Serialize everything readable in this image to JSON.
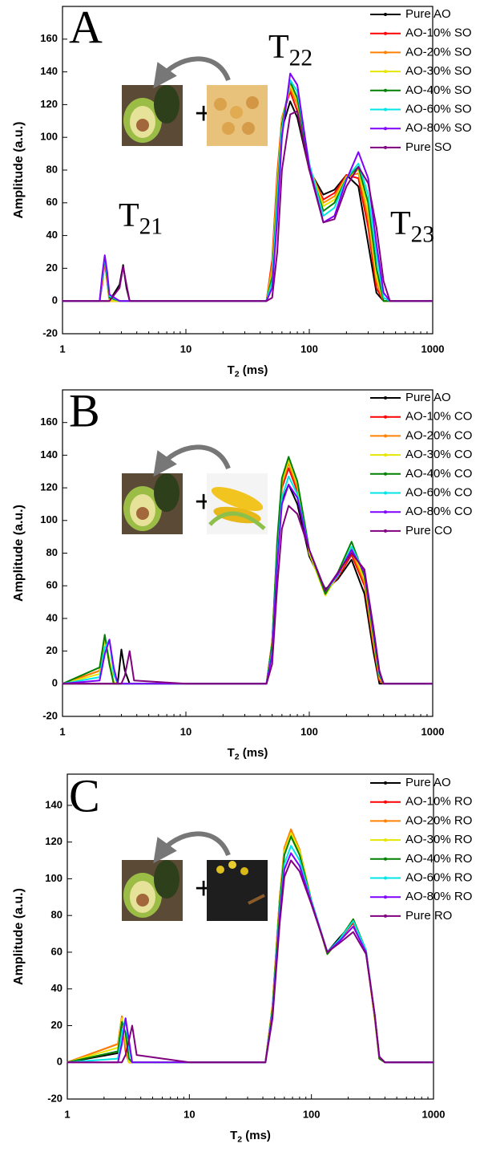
{
  "chart_data": [
    {
      "type": "line",
      "panel_label": "A",
      "log_x": true,
      "peak_labels": [
        {
          "text": "T",
          "sub": "22"
        },
        {
          "text": "T",
          "sub": "21"
        },
        {
          "text": "T",
          "sub": "23"
        }
      ],
      "x_label": {
        "text": "T",
        "sub": "2",
        "after": " (ms)"
      },
      "y_label": "Amplitude (a.u.)",
      "xlim": [
        1,
        1000
      ],
      "xticks": [
        1,
        10,
        100,
        1000
      ],
      "ylim": [
        -20,
        180
      ],
      "yticks": [
        -20,
        0,
        20,
        40,
        60,
        80,
        100,
        120,
        140,
        160
      ],
      "x": [
        1,
        2,
        2.1,
        2.2,
        2.3,
        2.4,
        2.9,
        3.1,
        3.3,
        3.5,
        10,
        45,
        50,
        55,
        60,
        70,
        80,
        100,
        130,
        160,
        200,
        250,
        300,
        350,
        400,
        450,
        1000
      ],
      "series": [
        {
          "name": "Pure AO",
          "color": "#000000",
          "values": [
            0,
            0,
            0,
            0,
            0,
            0,
            10,
            22,
            8,
            0,
            0,
            0,
            20,
            70,
            105,
            122,
            112,
            80,
            65,
            68,
            77,
            70,
            35,
            5,
            0,
            0,
            0
          ]
        },
        {
          "name": "AO-10% SO",
          "color": "#ff0000",
          "values": [
            0,
            0,
            10,
            24,
            12,
            0,
            0,
            0,
            0,
            0,
            0,
            0,
            25,
            78,
            112,
            128,
            116,
            80,
            62,
            66,
            77,
            75,
            45,
            8,
            0,
            0,
            0
          ]
        },
        {
          "name": "AO-20% SO",
          "color": "#ff8000",
          "values": [
            0,
            0,
            12,
            25,
            12,
            0,
            0,
            0,
            0,
            0,
            0,
            0,
            22,
            75,
            112,
            130,
            120,
            82,
            60,
            64,
            76,
            78,
            50,
            12,
            0,
            0,
            0
          ]
        },
        {
          "name": "AO-30% SO",
          "color": "#e6e600",
          "values": [
            0,
            0,
            12,
            26,
            14,
            0,
            0,
            0,
            0,
            0,
            0,
            0,
            18,
            70,
            110,
            132,
            122,
            82,
            58,
            62,
            76,
            80,
            55,
            15,
            0,
            0,
            0
          ]
        },
        {
          "name": "AO-40% SO",
          "color": "#008000",
          "values": [
            0,
            0,
            14,
            26,
            14,
            2,
            0,
            0,
            0,
            0,
            0,
            0,
            15,
            65,
            108,
            134,
            124,
            82,
            55,
            60,
            75,
            82,
            60,
            20,
            0,
            0,
            0
          ]
        },
        {
          "name": "AO-60% SO",
          "color": "#00e5e5",
          "values": [
            0,
            0,
            14,
            27,
            16,
            3,
            0,
            0,
            0,
            0,
            0,
            0,
            12,
            60,
            105,
            135,
            128,
            84,
            52,
            57,
            75,
            84,
            65,
            28,
            2,
            0,
            0
          ]
        },
        {
          "name": "AO-80% SO",
          "color": "#8000ff",
          "values": [
            0,
            0,
            16,
            28,
            18,
            4,
            0,
            0,
            0,
            0,
            0,
            0,
            8,
            50,
            100,
            139,
            132,
            82,
            48,
            52,
            74,
            91,
            75,
            35,
            5,
            0,
            0
          ]
        },
        {
          "name": "Pure SO",
          "color": "#800080",
          "values": [
            0,
            0,
            0,
            0,
            0,
            0,
            8,
            21,
            10,
            0,
            0,
            0,
            2,
            30,
            80,
            114,
            116,
            80,
            48,
            50,
            70,
            82,
            72,
            45,
            12,
            0,
            0
          ]
        }
      ]
    },
    {
      "type": "line",
      "panel_label": "B",
      "log_x": true,
      "x_label": {
        "text": "T",
        "sub": "2",
        "after": " (ms)"
      },
      "y_label": "Amplitude (a.u.)",
      "xlim": [
        1,
        1000
      ],
      "xticks": [
        1,
        10,
        100,
        1000
      ],
      "ylim": [
        -20,
        180
      ],
      "yticks": [
        -20,
        0,
        20,
        40,
        60,
        80,
        100,
        120,
        140,
        160
      ],
      "x": [
        1,
        2,
        2.2,
        2.4,
        2.6,
        2.8,
        3.0,
        3.2,
        3.5,
        3.8,
        10,
        45,
        50,
        55,
        60,
        68,
        80,
        100,
        135,
        170,
        220,
        280,
        330,
        370,
        400,
        1000
      ],
      "series": [
        {
          "name": "Pure AO",
          "color": "#000000",
          "values": [
            0,
            0,
            0,
            0,
            0,
            0,
            21,
            8,
            0,
            0,
            0,
            0,
            25,
            80,
            112,
            122,
            110,
            78,
            58,
            64,
            76,
            55,
            20,
            0,
            0,
            0
          ]
        },
        {
          "name": "AO-10% CO",
          "color": "#ff0000",
          "values": [
            0,
            8,
            29,
            12,
            0,
            0,
            0,
            0,
            0,
            0,
            0,
            0,
            26,
            85,
            120,
            132,
            118,
            80,
            56,
            65,
            79,
            60,
            24,
            2,
            0,
            0
          ]
        },
        {
          "name": "AO-20% CO",
          "color": "#ff8000",
          "values": [
            0,
            8,
            28,
            14,
            0,
            0,
            0,
            0,
            0,
            0,
            0,
            0,
            25,
            86,
            122,
            135,
            120,
            80,
            55,
            66,
            81,
            62,
            26,
            3,
            0,
            0
          ]
        },
        {
          "name": "AO-30% CO",
          "color": "#e6e600",
          "values": [
            0,
            6,
            27,
            15,
            1,
            0,
            0,
            0,
            0,
            0,
            0,
            0,
            24,
            87,
            124,
            137,
            122,
            80,
            54,
            67,
            83,
            64,
            28,
            4,
            0,
            0
          ]
        },
        {
          "name": "AO-40% CO",
          "color": "#008000",
          "values": [
            0,
            10,
            30,
            12,
            0,
            0,
            0,
            0,
            0,
            0,
            0,
            0,
            24,
            88,
            126,
            139,
            124,
            82,
            55,
            68,
            87,
            66,
            30,
            5,
            0,
            0
          ]
        },
        {
          "name": "AO-60% CO",
          "color": "#00e5e5",
          "values": [
            0,
            4,
            22,
            27,
            6,
            0,
            0,
            0,
            0,
            0,
            0,
            0,
            20,
            78,
            114,
            127,
            116,
            82,
            57,
            66,
            84,
            68,
            32,
            6,
            0,
            0
          ]
        },
        {
          "name": "AO-80% CO",
          "color": "#8000ff",
          "values": [
            0,
            2,
            18,
            27,
            10,
            0,
            0,
            0,
            0,
            0,
            0,
            0,
            18,
            74,
            110,
            122,
            114,
            82,
            57,
            67,
            82,
            68,
            33,
            7,
            0,
            0
          ]
        },
        {
          "name": "Pure CO",
          "color": "#800080",
          "values": [
            0,
            0,
            0,
            0,
            0,
            0,
            0,
            5,
            20,
            2,
            0,
            0,
            12,
            60,
            95,
            109,
            104,
            82,
            57,
            68,
            80,
            70,
            35,
            8,
            0,
            0
          ]
        }
      ]
    },
    {
      "type": "line",
      "panel_label": "C",
      "log_x": true,
      "x_label": {
        "text": "T",
        "sub": "2",
        "after": " (ms)"
      },
      "y_label": "Amplitude (a.u.)",
      "xlim": [
        1,
        1000
      ],
      "xticks": [
        1,
        10,
        100,
        1000
      ],
      "ylim": [
        -20,
        157
      ],
      "yticks": [
        -20,
        0,
        20,
        40,
        60,
        80,
        100,
        120,
        140
      ],
      "x": [
        1,
        2.6,
        2.8,
        3.0,
        3.2,
        3.4,
        3.7,
        10,
        42,
        48,
        55,
        60,
        68,
        80,
        100,
        135,
        170,
        220,
        280,
        330,
        360,
        400,
        1000
      ],
      "series": [
        {
          "name": "Pure AO",
          "color": "#000000",
          "values": [
            0,
            5,
            22,
            10,
            0,
            0,
            0,
            0,
            0,
            30,
            88,
            114,
            124,
            114,
            88,
            60,
            68,
            76,
            60,
            25,
            2,
            0,
            0
          ]
        },
        {
          "name": "AO-10% RO",
          "color": "#ff0000",
          "values": [
            0,
            10,
            25,
            6,
            0,
            0,
            0,
            0,
            0,
            31,
            90,
            116,
            126,
            115,
            88,
            59,
            67,
            76,
            60,
            24,
            2,
            0,
            0
          ]
        },
        {
          "name": "AO-20% RO",
          "color": "#ff8000",
          "values": [
            0,
            10,
            25,
            8,
            0,
            0,
            0,
            0,
            0,
            31,
            90,
            117,
            127,
            116,
            88,
            59,
            67,
            77,
            60,
            24,
            2,
            0,
            0
          ]
        },
        {
          "name": "AO-30% RO",
          "color": "#e6e600",
          "values": [
            0,
            8,
            24,
            12,
            0,
            0,
            0,
            0,
            0,
            30,
            89,
            115,
            125,
            115,
            88,
            59,
            67,
            78,
            61,
            24,
            2,
            0,
            0
          ]
        },
        {
          "name": "AO-40% RO",
          "color": "#008000",
          "values": [
            0,
            6,
            22,
            16,
            2,
            0,
            0,
            0,
            0,
            29,
            87,
            113,
            123,
            113,
            88,
            59,
            67,
            78,
            61,
            25,
            2,
            0,
            0
          ]
        },
        {
          "name": "AO-60% RO",
          "color": "#00e5e5",
          "values": [
            0,
            2,
            16,
            24,
            8,
            0,
            0,
            0,
            0,
            27,
            83,
            108,
            118,
            110,
            88,
            60,
            67,
            77,
            61,
            26,
            3,
            0,
            0
          ]
        },
        {
          "name": "AO-80% RO",
          "color": "#8000ff",
          "values": [
            0,
            0,
            10,
            24,
            12,
            0,
            0,
            0,
            0,
            26,
            80,
            105,
            114,
            107,
            87,
            60,
            66,
            74,
            60,
            26,
            3,
            0,
            0
          ]
        },
        {
          "name": "Pure RO",
          "color": "#800080",
          "values": [
            0,
            0,
            0,
            4,
            12,
            20,
            4,
            0,
            0,
            24,
            76,
            101,
            110,
            104,
            86,
            60,
            65,
            71,
            59,
            26,
            3,
            0,
            0
          ]
        }
      ]
    }
  ]
}
